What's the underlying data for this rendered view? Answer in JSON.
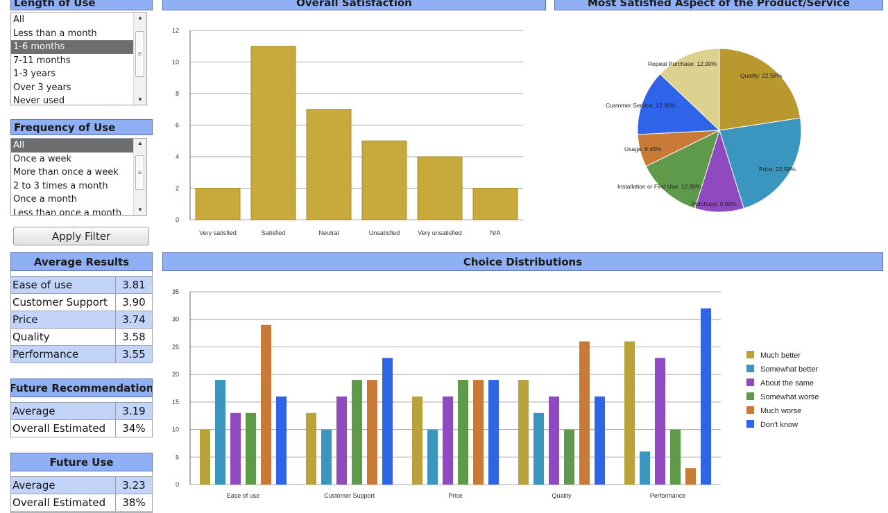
{
  "length_of_use": {
    "title": "Length of Use",
    "items": [
      "All",
      "Less than a month",
      "1-6 months",
      "7-11 months",
      "1-3 years",
      "Over 3 years",
      "Never used"
    ],
    "selected": "1-6 months"
  },
  "frequency_of_use": {
    "title": "Frequency of Use",
    "items": [
      "All",
      "Once a week",
      "More than once a week",
      "2 to 3 times a month",
      "Once a month",
      "Less than once a month"
    ],
    "selected": "All"
  },
  "apply_filter_label": "Apply Filter",
  "average_results": {
    "title": "Average Results",
    "rows": [
      {
        "label": "Ease of use",
        "value": "3.81"
      },
      {
        "label": "Customer Support",
        "value": "3.90"
      },
      {
        "label": "Price",
        "value": "3.74"
      },
      {
        "label": "Quality",
        "value": "3.58"
      },
      {
        "label": "Performance",
        "value": "3.55"
      }
    ]
  },
  "future_recommendation": {
    "title": "Future Recommendation",
    "rows": [
      {
        "label": "Average",
        "value": "3.19"
      },
      {
        "label": "Overall Estimated",
        "value": "34%"
      }
    ]
  },
  "future_use": {
    "title": "Future Use",
    "rows": [
      {
        "label": "Average",
        "value": "3.23"
      },
      {
        "label": "Overall Estimated",
        "value": "38%"
      }
    ]
  },
  "colors": {
    "header_bg": "#8fb0f4",
    "bar": "#c8aa3c",
    "grid": "#a8a8a8"
  },
  "chart_data": [
    {
      "type": "bar",
      "title": "Overall Satisfaction",
      "categories": [
        "Very satisfied",
        "Satisfied",
        "Neutral",
        "Unsatisfied",
        "Very unsatisfied",
        "N/A"
      ],
      "values": [
        2,
        11,
        7,
        5,
        4,
        2
      ],
      "ylim": [
        0,
        12
      ],
      "yticks": [
        0,
        2,
        4,
        6,
        8,
        10,
        12
      ],
      "grid": true,
      "color": "#c8aa3c"
    },
    {
      "type": "pie",
      "title": "Most Satisfied Aspect of the Product/Service",
      "slices": [
        {
          "label": "Quality",
          "value": 22.58,
          "text": "Quality: 22.58%",
          "color": "#b9992f"
        },
        {
          "label": "Price",
          "value": 22.58,
          "text": "Price: 22.58%",
          "color": "#3a95bf"
        },
        {
          "label": "Purchase",
          "value": 9.68,
          "text": "Purchase: 9.68%",
          "color": "#8f4ac0"
        },
        {
          "label": "Installation or First Use",
          "value": 12.9,
          "text": "Installation or First Use: 12.90%",
          "color": "#5f9a4a"
        },
        {
          "label": "Usage",
          "value": 6.45,
          "text": "Usage: 6.45%",
          "color": "#c87a36"
        },
        {
          "label": "Customer Service",
          "value": 12.9,
          "text": "Customer Service: 12.90%",
          "color": "#2f63e8"
        },
        {
          "label": "Repeat Purchase",
          "value": 12.9,
          "text": "Repeat Purchase: 12.90%",
          "color": "#ddd18f"
        }
      ]
    },
    {
      "type": "bar",
      "title": "Choice Distributions",
      "categories": [
        "Ease of use",
        "Customer Support",
        "Price",
        "Quality",
        "Performance"
      ],
      "series": [
        {
          "name": "Much better",
          "color": "#b9a23a",
          "values": [
            10,
            13,
            16,
            19,
            26
          ]
        },
        {
          "name": "Somewhat better",
          "color": "#3a95bf",
          "values": [
            19,
            10,
            10,
            13,
            6
          ]
        },
        {
          "name": "About the same",
          "color": "#8f4ac0",
          "values": [
            13,
            16,
            16,
            16,
            23
          ]
        },
        {
          "name": "Somewhat worse",
          "color": "#5f9a4a",
          "values": [
            13,
            19,
            19,
            10,
            10
          ]
        },
        {
          "name": "Much worse",
          "color": "#c87a36",
          "values": [
            29,
            19,
            19,
            26,
            3
          ]
        },
        {
          "name": "Don't know",
          "color": "#2f63e8",
          "values": [
            16,
            23,
            19,
            16,
            32
          ]
        }
      ],
      "ylim": [
        0,
        35
      ],
      "yticks": [
        0,
        5,
        10,
        15,
        20,
        25,
        30,
        35
      ],
      "grid": true,
      "legend": "right"
    }
  ]
}
